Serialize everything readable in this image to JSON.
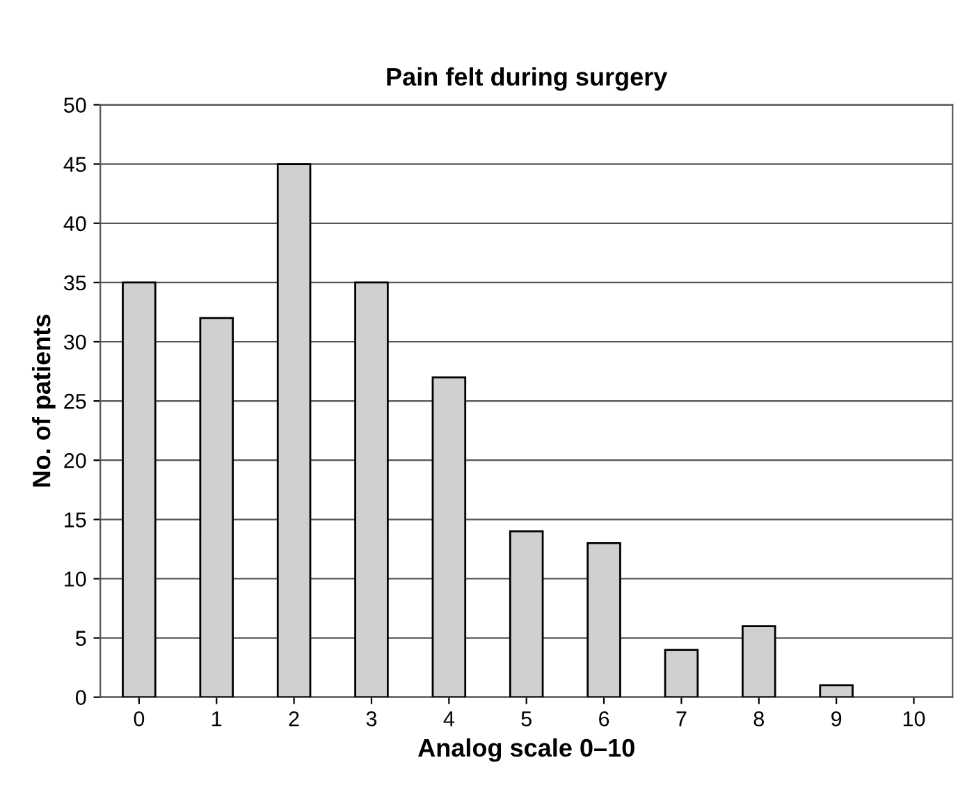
{
  "chart_data": {
    "type": "bar",
    "title": "Pain felt during surgery",
    "xlabel": "Analog scale 0–10",
    "ylabel": "No. of patients",
    "categories": [
      "0",
      "1",
      "2",
      "3",
      "4",
      "5",
      "6",
      "7",
      "8",
      "9",
      "10"
    ],
    "values": [
      35,
      32,
      45,
      35,
      27,
      14,
      13,
      4,
      6,
      1,
      0
    ],
    "color": "#d0d0d0",
    "ylim": [
      0,
      50
    ],
    "yticks": [
      0,
      5,
      10,
      15,
      20,
      25,
      30,
      35,
      40,
      45,
      50
    ],
    "grid": "y",
    "legend": false
  }
}
